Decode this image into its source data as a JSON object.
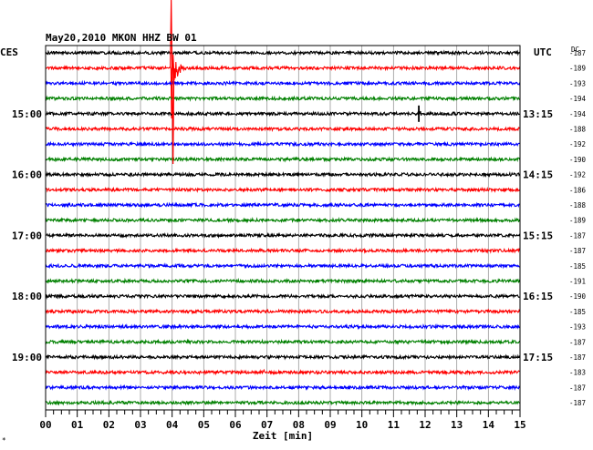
{
  "chart_data": {
    "type": "line",
    "title": "May20,2010  MKON HHZ BW 01",
    "left_timezone": "CES",
    "right_timezone": "UTC",
    "dc_label": "DC",
    "xlabel": "Zeit [min]",
    "xlim": [
      0,
      15
    ],
    "x_ticks": [
      "00",
      "01",
      "02",
      "03",
      "04",
      "05",
      "06",
      "07",
      "08",
      "09",
      "10",
      "11",
      "12",
      "13",
      "14",
      "15"
    ],
    "left_hour_labels": [
      {
        "label": "15:00",
        "row": 4
      },
      {
        "label": "16:00",
        "row": 8
      },
      {
        "label": "17:00",
        "row": 12
      },
      {
        "label": "18:00",
        "row": 16
      },
      {
        "label": "19:00",
        "row": 20
      }
    ],
    "right_hour_labels": [
      {
        "label": "13:15",
        "row": 4
      },
      {
        "label": "14:15",
        "row": 8
      },
      {
        "label": "15:15",
        "row": 12
      },
      {
        "label": "16:15",
        "row": 16
      },
      {
        "label": "17:15",
        "row": 20
      }
    ],
    "dc_offsets": [
      "-187",
      "-189",
      "-193",
      "-194",
      "-194",
      "-188",
      "-192",
      "-190",
      "-192",
      "-186",
      "-188",
      "-189",
      "-187",
      "-187",
      "-185",
      "-191",
      "-190",
      "-185",
      "-193",
      "-187",
      "-187",
      "-183",
      "-187",
      "-187"
    ],
    "colors": [
      "#000000",
      "#ff0000",
      "#0000ff",
      "#008000"
    ],
    "traces": 24,
    "grid": true,
    "events": [
      {
        "name": "earthquake",
        "row": 1,
        "minute": 4.0,
        "amplitude": 10
      },
      {
        "name": "spike",
        "row": 4,
        "minute": 11.8,
        "amplitude": 1.5
      },
      {
        "name": "burst",
        "row": 21,
        "minute": 6.9,
        "amplitude": 0.3
      },
      {
        "name": "burst",
        "row": 23,
        "minute": 8.9,
        "amplitude": 0.3
      }
    ],
    "footer_mark": "*"
  }
}
